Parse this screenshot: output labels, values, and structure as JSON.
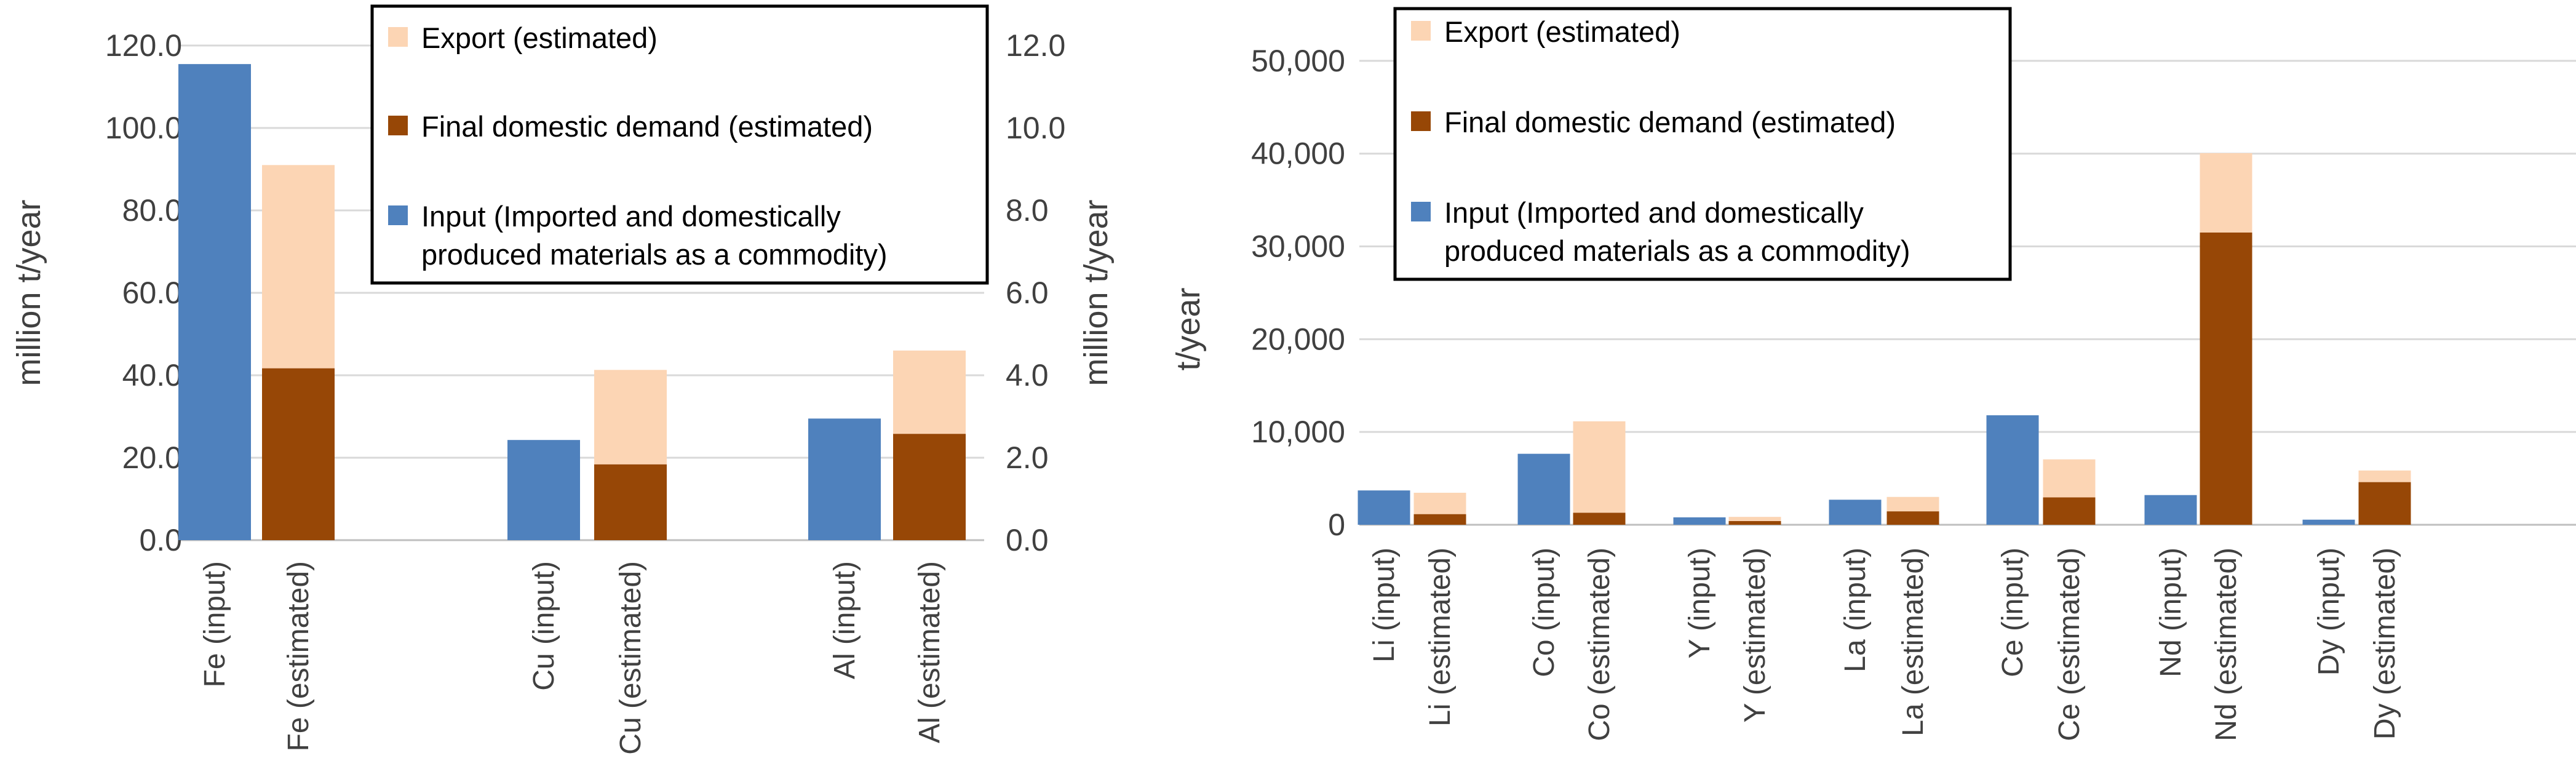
{
  "chart_data": [
    {
      "type": "bar",
      "stacked": true,
      "grid": true,
      "legend_position": "top-right",
      "ylabel": "million t/year",
      "y2label": "million t/year",
      "ylim": [
        0,
        120
      ],
      "y2lim": [
        0,
        12
      ],
      "yticks": [
        "0.0",
        "20.0",
        "40.0",
        "60.0",
        "80.0",
        "100.0",
        "120.0"
      ],
      "y2ticks": [
        "0.0",
        "2.0",
        "4.0",
        "6.0",
        "8.0",
        "10.0",
        "12.0"
      ],
      "legend": [
        {
          "name": "Export (estimated)",
          "color": "#FCD5B4"
        },
        {
          "name": "Final domestic demand (estimated)",
          "color": "#974706"
        },
        {
          "name": "Input (Imported and domestically",
          "name_line2": "produced materials as a commodity)",
          "color": "#4F81BD"
        }
      ],
      "groups": [
        {
          "axis": "primary",
          "bars": [
            {
              "label": "Fe (input)",
              "input": 115.5
            },
            {
              "label": "Fe (estimated)",
              "demand": 41.7,
              "export": 49.3
            }
          ]
        },
        {
          "axis": "secondary",
          "bars": [
            {
              "label": "Cu (input)",
              "input": 2.43
            },
            {
              "label": "Cu (estimated)",
              "demand": 1.84,
              "export": 2.29
            }
          ]
        },
        {
          "axis": "secondary",
          "bars": [
            {
              "label": "Al (input)",
              "input": 2.95
            },
            {
              "label": "Al (estimated)",
              "demand": 2.58,
              "export": 2.02
            }
          ]
        }
      ]
    },
    {
      "type": "bar",
      "stacked": true,
      "grid": true,
      "legend_position": "top-left",
      "ylabel": "t/year",
      "ylim": [
        0,
        55000
      ],
      "yticks": [
        "0",
        "10,000",
        "20,000",
        "30,000",
        "40,000",
        "50,000"
      ],
      "legend": [
        {
          "name": "Export (estimated)",
          "color": "#FCD5B4"
        },
        {
          "name": "Final domestic demand (estimated)",
          "color": "#974706"
        },
        {
          "name": "Input (Imported and domestically",
          "name_line2": "produced materials as a commodity)",
          "color": "#4F81BD"
        }
      ],
      "groups": [
        {
          "bars": [
            {
              "label": "Li (input)",
              "input": 3700
            },
            {
              "label": "Li (estimated)",
              "demand": 1150,
              "export": 2300
            }
          ]
        },
        {
          "bars": [
            {
              "label": "Co (input)",
              "input": 7650
            },
            {
              "label": "Co (estimated)",
              "demand": 1300,
              "export": 9850
            }
          ]
        },
        {
          "bars": [
            {
              "label": "Y (input)",
              "input": 800
            },
            {
              "label": "Y (estimated)",
              "demand": 400,
              "export": 450
            }
          ]
        },
        {
          "bars": [
            {
              "label": "La (input)",
              "input": 2700
            },
            {
              "label": "La (estimated)",
              "demand": 1450,
              "export": 1550
            }
          ]
        },
        {
          "bars": [
            {
              "label": "Ce (input)",
              "input": 11800
            },
            {
              "label": "Ce (estimated)",
              "demand": 2950,
              "export": 4100
            }
          ]
        },
        {
          "bars": [
            {
              "label": "Nd (input)",
              "input": 3200
            },
            {
              "label": "Nd (estimated)",
              "demand": 31500,
              "export": 8550
            }
          ]
        },
        {
          "bars": [
            {
              "label": "Dy (input)",
              "input": 550
            },
            {
              "label": "Dy (estimated)",
              "demand": 4600,
              "export": 1250
            }
          ]
        }
      ]
    }
  ]
}
